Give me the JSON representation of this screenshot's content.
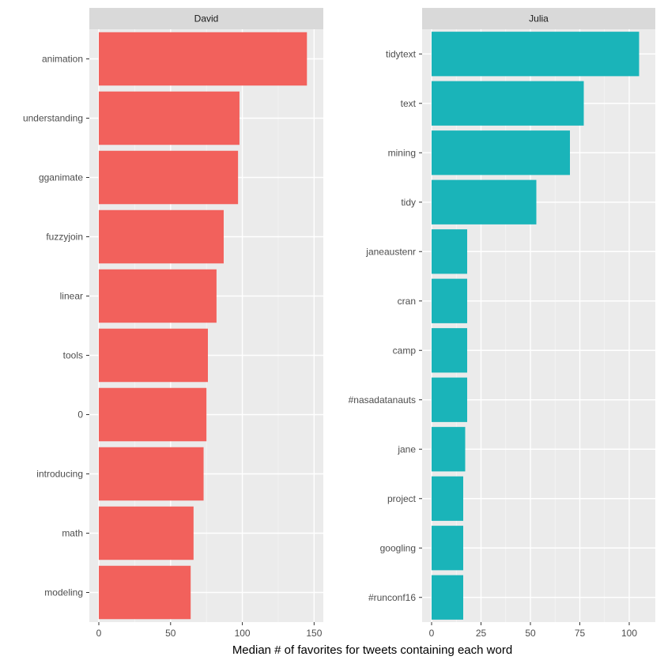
{
  "chart_data": {
    "type": "bar",
    "orientation": "horizontal",
    "xlabel": "Median # of favorites for tweets containing each word",
    "grid": true,
    "legend": "none",
    "panels": [
      {
        "name": "David",
        "color": "#F8766D",
        "bar_color": "#F2615C",
        "xlim": [
          0,
          152
        ],
        "xticks": [
          0,
          50,
          100,
          150
        ],
        "categories": [
          "animation",
          "understanding",
          "gganimate",
          "fuzzyjoin",
          "linear",
          "tools",
          "0",
          "introducing",
          "math",
          "modeling"
        ],
        "values": [
          145,
          98,
          97,
          87,
          82,
          76,
          75,
          73,
          66,
          64
        ]
      },
      {
        "name": "Julia",
        "color": "#00BFC4",
        "bar_color": "#1AB4B9",
        "xlim": [
          0,
          110
        ],
        "xticks": [
          0,
          25,
          50,
          75,
          100
        ],
        "categories": [
          "tidytext",
          "text",
          "mining",
          "tidy",
          "janeaustenr",
          "cran",
          "camp",
          "#nasadatanauts",
          "jane",
          "project",
          "googling",
          "#runconf16"
        ],
        "values": [
          105,
          77,
          70,
          53,
          18,
          18,
          18,
          18,
          17,
          16,
          16,
          16
        ]
      }
    ]
  }
}
